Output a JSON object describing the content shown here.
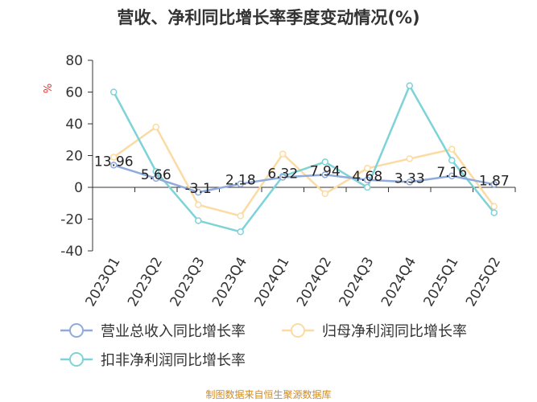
{
  "chart_data": {
    "type": "line",
    "title": "营收、净利同比增长率季度变动情况(%)",
    "ylabel": "%",
    "ylim": [
      -40,
      80
    ],
    "yticks": [
      80,
      60,
      40,
      20,
      0,
      -20,
      -40
    ],
    "categories": [
      "2023Q1",
      "2023Q2",
      "2023Q3",
      "2023Q4",
      "2024Q1",
      "2024Q2",
      "2024Q3",
      "2024Q4",
      "2025Q1",
      "2025Q2"
    ],
    "series": [
      {
        "name": "营业总收入同比增长率",
        "color": "#8faadc",
        "values": [
          13.96,
          5.66,
          -3.1,
          2.18,
          6.32,
          7.94,
          4.68,
          3.33,
          7.16,
          1.87
        ],
        "labels": [
          "13.96",
          "5.66",
          "-3.1",
          "2.18",
          "6.32",
          "7.94",
          "4.68",
          "3.33",
          "7.16",
          "1.87"
        ]
      },
      {
        "name": "归母净利润同比增长率",
        "color": "#fcdba3",
        "values": [
          19,
          38,
          -11,
          -18,
          21,
          -4,
          12,
          18,
          24,
          -12
        ]
      },
      {
        "name": "扣非净利润同比增长率",
        "color": "#7dd3d8",
        "values": [
          60,
          10,
          -21,
          -28,
          7,
          16,
          0,
          64,
          17,
          -16
        ]
      }
    ],
    "legend_position": "bottom",
    "grid": false
  },
  "source": "制图数据来自恒生聚源数据库"
}
